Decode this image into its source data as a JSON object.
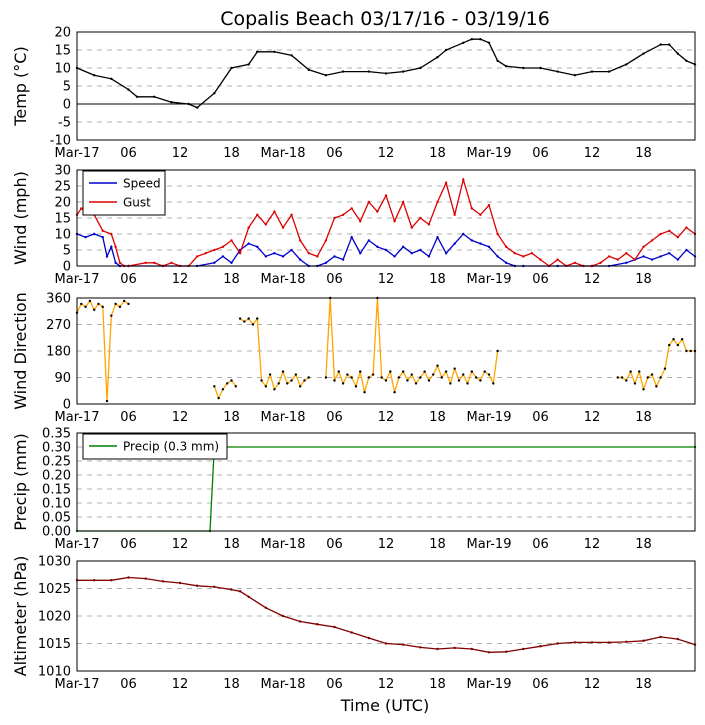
{
  "title": "Copalis Beach 03/17/16 - 03/19/16",
  "xlabel": "Time (UTC)",
  "x_ticks": [
    {
      "hour": 0,
      "label": "Mar-17"
    },
    {
      "hour": 6,
      "label": "06"
    },
    {
      "hour": 12,
      "label": "12"
    },
    {
      "hour": 18,
      "label": "18"
    },
    {
      "hour": 24,
      "label": "Mar-18"
    },
    {
      "hour": 30,
      "label": "06"
    },
    {
      "hour": 36,
      "label": "12"
    },
    {
      "hour": 42,
      "label": "18"
    },
    {
      "hour": 48,
      "label": "Mar-19"
    },
    {
      "hour": 54,
      "label": "06"
    },
    {
      "hour": 60,
      "label": "12"
    },
    {
      "hour": 66,
      "label": "18"
    }
  ],
  "x_range_hours": [
    0,
    72
  ],
  "colors": {
    "temp": "#000000",
    "speed": "#0000cc",
    "gust": "#dd0000",
    "direction": "#ffa500",
    "precip": "#008000",
    "pressure": "#800000",
    "grid": "#b0b0b0"
  },
  "chart_data": [
    {
      "id": "temp",
      "type": "line",
      "ylabel": "Temp (°C)",
      "ylim": [
        -10,
        20
      ],
      "yticks": [
        -10,
        -5,
        0,
        5,
        10,
        15,
        20
      ],
      "zero_line": true,
      "series": [
        {
          "name": "Temp",
          "x": [
            0,
            2,
            4,
            6,
            7,
            9,
            11,
            13,
            14,
            16,
            18,
            20,
            21,
            23,
            25,
            27,
            29,
            31,
            34,
            36,
            38,
            40,
            42,
            43,
            45,
            46,
            47,
            48,
            49,
            50,
            52,
            54,
            56,
            58,
            60,
            62,
            64,
            66,
            68,
            69,
            70,
            71,
            72
          ],
          "y": [
            10,
            8,
            7,
            4,
            2,
            2,
            0.5,
            0,
            -1,
            3,
            10,
            11,
            14.5,
            14.5,
            13.5,
            9.5,
            8,
            9,
            9,
            8.5,
            9,
            10,
            13,
            15,
            17,
            18,
            18,
            17,
            12,
            10.5,
            10,
            10,
            9,
            8,
            9,
            9,
            11,
            14,
            16.5,
            16.5,
            14,
            12,
            11
          ]
        }
      ]
    },
    {
      "id": "wind",
      "type": "line",
      "ylabel": "Wind (mph)",
      "ylim": [
        0,
        30
      ],
      "yticks": [
        0,
        5,
        10,
        15,
        20,
        25,
        30
      ],
      "legend": [
        "Speed",
        "Gust"
      ],
      "legend_position": "upper-left",
      "series": [
        {
          "name": "Speed",
          "x": [
            0,
            1,
            2,
            3,
            3.5,
            4,
            4.5,
            5,
            6,
            10,
            14,
            16,
            17,
            18,
            19,
            20,
            21,
            22,
            23,
            24,
            25,
            26,
            27,
            28,
            29,
            30,
            31,
            32,
            33,
            34,
            35,
            36,
            37,
            38,
            39,
            40,
            41,
            42,
            43,
            44,
            45,
            46,
            47,
            48,
            49,
            50,
            51,
            52,
            56,
            60,
            62,
            64,
            65,
            66,
            67,
            68,
            69,
            70,
            71,
            72
          ],
          "y": [
            10,
            9,
            10,
            9,
            3,
            6,
            1,
            0,
            0,
            0,
            0,
            1,
            3,
            1,
            5,
            7,
            6,
            3,
            4,
            3,
            5,
            2,
            0,
            0,
            1,
            3,
            2,
            9,
            4,
            8,
            6,
            5,
            3,
            6,
            4,
            5,
            3,
            9,
            4,
            7,
            10,
            8,
            7,
            6,
            3,
            1,
            0,
            0,
            0,
            0,
            0,
            1,
            2,
            3,
            2,
            3,
            4,
            2,
            5,
            3
          ]
        },
        {
          "name": "Gust",
          "x": [
            0,
            0.5,
            1,
            2,
            3,
            4,
            4.5,
            5,
            5.5,
            6,
            8,
            9,
            10,
            11,
            12,
            13,
            14,
            15,
            16,
            17,
            18,
            19,
            20,
            21,
            22,
            23,
            24,
            25,
            26,
            27,
            28,
            29,
            30,
            31,
            32,
            33,
            34,
            35,
            36,
            37,
            38,
            39,
            40,
            41,
            42,
            43,
            44,
            45,
            46,
            47,
            48,
            49,
            50,
            51,
            52,
            53,
            54,
            55,
            56,
            57,
            58,
            59,
            60,
            61,
            62,
            63,
            64,
            65,
            66,
            67,
            68,
            69,
            70,
            71,
            72
          ],
          "y": [
            16,
            18,
            17,
            16,
            11,
            10,
            6,
            1,
            0,
            0,
            1,
            1,
            0,
            1,
            0,
            0,
            3,
            4,
            5,
            6,
            8,
            4,
            12,
            16,
            13,
            17,
            12,
            16,
            8,
            4,
            3,
            8,
            15,
            16,
            18,
            14,
            20,
            17,
            22,
            14,
            20,
            12,
            15,
            13,
            20,
            26,
            16,
            27,
            18,
            16,
            19,
            10,
            6,
            4,
            3,
            4,
            2,
            0,
            2,
            0,
            1,
            0,
            0,
            1,
            3,
            2,
            4,
            2,
            6,
            8,
            10,
            11,
            9,
            12,
            10
          ]
        }
      ]
    },
    {
      "id": "direction",
      "type": "scatter-line",
      "ylabel": "Wind Direction",
      "ylim": [
        0,
        360
      ],
      "yticks": [
        0,
        90,
        180,
        270,
        360
      ],
      "series": [
        {
          "name": "Direction",
          "segments": [
            {
              "x": [
                0,
                0.5,
                1,
                1.5,
                2,
                2.5,
                3,
                3.5,
                4,
                4.5,
                5,
                5.5,
                6
              ],
              "y": [
                310,
                340,
                330,
                350,
                320,
                340,
                330,
                10,
                300,
                340,
                330,
                350,
                340
              ]
            },
            {
              "x": [
                16,
                16.5,
                17,
                17.5,
                18,
                18.5
              ],
              "y": [
                60,
                20,
                50,
                70,
                80,
                60
              ]
            },
            {
              "x": [
                19,
                19.5,
                20,
                20.5,
                21,
                21.5,
                22,
                22.5,
                23,
                23.5,
                24,
                24.5,
                25,
                25.5,
                26,
                26.5,
                27
              ],
              "y": [
                290,
                280,
                290,
                270,
                290,
                80,
                60,
                100,
                50,
                70,
                110,
                70,
                80,
                100,
                60,
                80,
                90
              ]
            },
            {
              "x": [
                29,
                29.5,
                30,
                30.5,
                31,
                31.5,
                32,
                32.5,
                33,
                33.5,
                34,
                34.5,
                35,
                35.5,
                36,
                36.5,
                37,
                37.5,
                38,
                38.5,
                39,
                39.5,
                40,
                40.5,
                41,
                41.5,
                42,
                42.5,
                43,
                43.5,
                44,
                44.5,
                45,
                45.5,
                46,
                46.5,
                47,
                47.5,
                48,
                48.5,
                49
              ],
              "y": [
                90,
                360,
                80,
                110,
                70,
                100,
                90,
                60,
                110,
                40,
                90,
                100,
                360,
                90,
                80,
                110,
                40,
                90,
                110,
                80,
                100,
                70,
                90,
                110,
                80,
                100,
                130,
                90,
                110,
                70,
                120,
                80,
                100,
                70,
                110,
                90,
                80,
                110,
                100,
                70,
                180
              ]
            },
            {
              "x": [
                63,
                63.5,
                64,
                64.5,
                65,
                65.5,
                66,
                66.5,
                67,
                67.5,
                68,
                68.5,
                69,
                69.5,
                70,
                70.5,
                71,
                71.5,
                72
              ],
              "y": [
                90,
                90,
                80,
                110,
                70,
                110,
                50,
                90,
                100,
                60,
                90,
                120,
                200,
                220,
                200,
                220,
                180,
                180,
                180
              ]
            }
          ]
        }
      ]
    },
    {
      "id": "precip",
      "type": "line",
      "ylabel": "Precip (mm)",
      "ylim": [
        0,
        0.35
      ],
      "yticks": [
        "0.00",
        "0.05",
        "0.10",
        "0.15",
        "0.20",
        "0.25",
        "0.30",
        "0.35"
      ],
      "legend": [
        "Precip (0.3 mm)"
      ],
      "legend_position": "upper-left",
      "series": [
        {
          "name": "Precip",
          "x": [
            0,
            15.5,
            16,
            72
          ],
          "y": [
            0,
            0,
            0.3,
            0.3
          ]
        }
      ]
    },
    {
      "id": "pressure",
      "type": "line",
      "ylabel": "Altimeter (hPa)",
      "ylim": [
        1010,
        1030
      ],
      "yticks": [
        1010,
        1015,
        1020,
        1025,
        1030
      ],
      "series": [
        {
          "name": "Altimeter",
          "x": [
            0,
            2,
            4,
            6,
            8,
            10,
            12,
            14,
            16,
            18,
            19,
            20,
            22,
            24,
            26,
            28,
            30,
            32,
            34,
            36,
            38,
            40,
            42,
            44,
            46,
            48,
            50,
            52,
            54,
            56,
            58,
            60,
            62,
            64,
            66,
            68,
            70,
            72
          ],
          "y": [
            1026.5,
            1026.5,
            1026.5,
            1027,
            1026.8,
            1026.3,
            1026,
            1025.5,
            1025.3,
            1024.8,
            1024.5,
            1023.5,
            1021.5,
            1020,
            1019,
            1018.5,
            1018,
            1017,
            1016,
            1015,
            1014.8,
            1014.3,
            1014,
            1014.2,
            1014,
            1013.4,
            1013.5,
            1014,
            1014.5,
            1015,
            1015.2,
            1015.2,
            1015.2,
            1015.3,
            1015.5,
            1016.2,
            1015.8,
            1014.8
          ]
        }
      ]
    }
  ]
}
